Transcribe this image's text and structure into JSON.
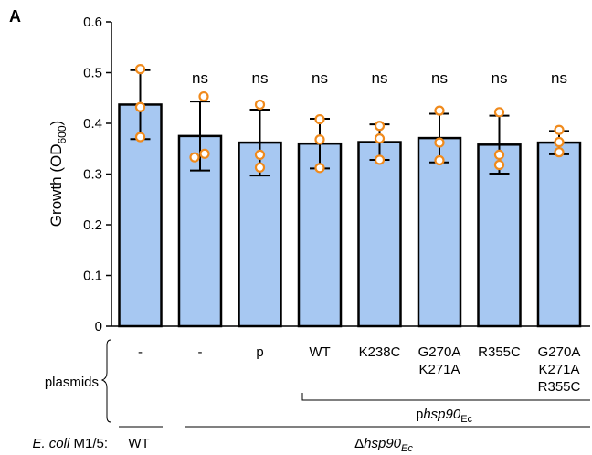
{
  "panel_label": "A",
  "colors": {
    "bar_fill": "#a7c8f2",
    "bar_stroke": "#000000",
    "point": "#f08a1c"
  },
  "chart_data": {
    "type": "bar",
    "ylabel_main": "Growth (OD",
    "ylabel_sub": "600",
    "ylabel_end": ")",
    "ylim": [
      0,
      0.6
    ],
    "yticks": [
      "0",
      "0.1",
      "0.2",
      "0.3",
      "0.4",
      "0.5",
      "0.6"
    ],
    "categories": [
      [
        "-"
      ],
      [
        "-"
      ],
      [
        "p"
      ],
      [
        "WT"
      ],
      [
        "K238C"
      ],
      [
        "G270A",
        "K271A"
      ],
      [
        "R355C"
      ],
      [
        "G270A",
        "K271A",
        "R355C"
      ]
    ],
    "means": [
      0.437,
      0.375,
      0.362,
      0.36,
      0.363,
      0.371,
      0.358,
      0.362
    ],
    "sd": [
      0.068,
      0.068,
      0.065,
      0.049,
      0.035,
      0.048,
      0.057,
      0.023
    ],
    "points": [
      [
        0.507,
        0.432,
        0.373
      ],
      [
        0.453,
        0.333,
        0.34
      ],
      [
        0.437,
        0.338,
        0.313
      ],
      [
        0.408,
        0.368,
        0.312
      ],
      [
        0.395,
        0.37,
        0.328
      ],
      [
        0.425,
        0.362,
        0.327
      ],
      [
        0.422,
        0.338,
        0.318
      ],
      [
        0.387,
        0.363,
        0.343
      ]
    ],
    "significance": [
      "",
      "ns",
      "ns",
      "ns",
      "ns",
      "ns",
      "ns",
      "ns"
    ],
    "grid": false
  },
  "annotations": {
    "plasmids_label": "plasmids",
    "phsp90_prefix": "p",
    "phsp90_gene": "hsp90",
    "phsp90_sub": "Ec",
    "strain_label_italic": "E. coli",
    "strain_label_rest": " M1/5:",
    "strain_wt": "WT",
    "delta_symbol": "Δ",
    "delta_gene": "hsp90",
    "delta_sub": "Ec"
  }
}
